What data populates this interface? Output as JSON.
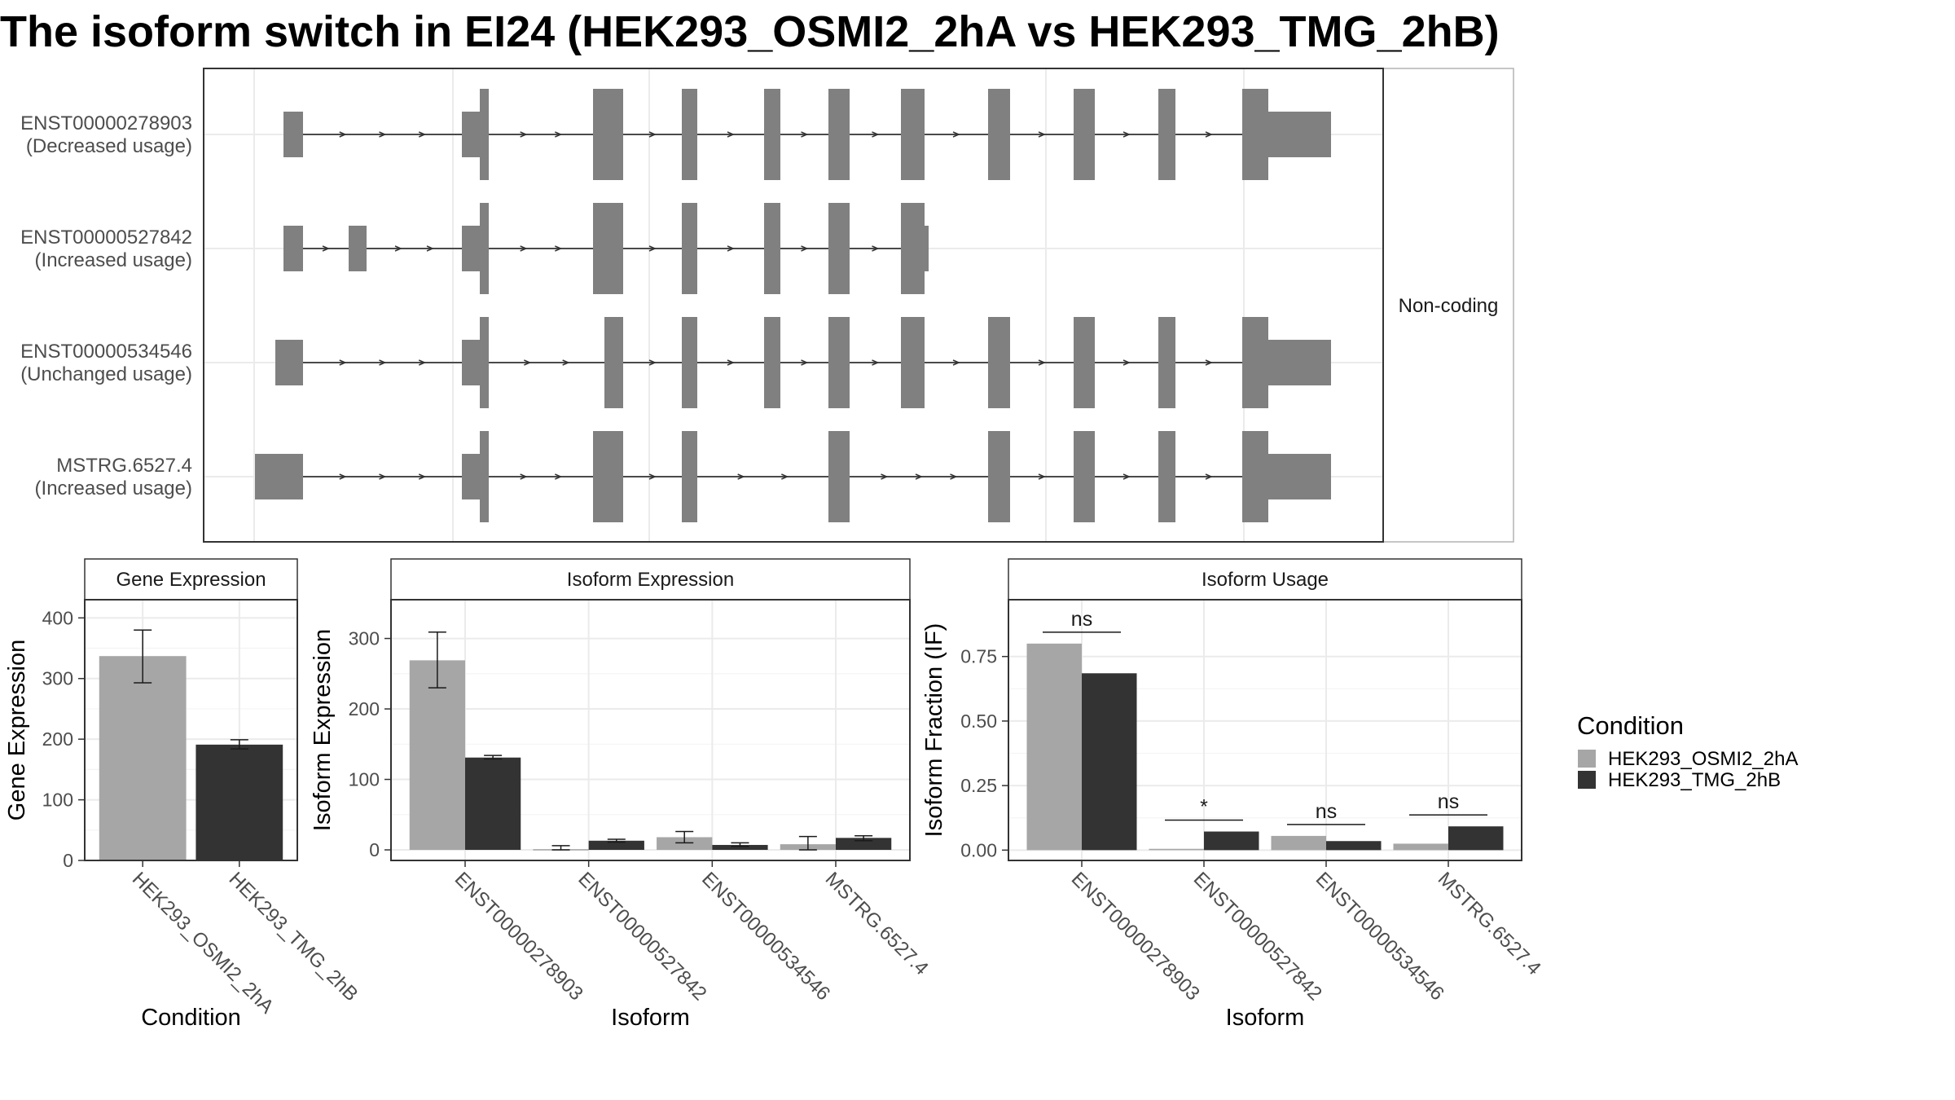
{
  "title": "The isoform switch in EI24 (HEK293_OSMI2_2hA vs HEK293_TMG_2hB)",
  "colors": {
    "cond1": "#a6a6a6",
    "cond2": "#333333",
    "exon": "#808080"
  },
  "structure": {
    "strip_label": "Non-coding",
    "transcripts": [
      {
        "id": "ENST00000278903",
        "usage": "(Decreased usage)"
      },
      {
        "id": "ENST00000527842",
        "usage": "(Increased usage)"
      },
      {
        "id": "ENST00000534546",
        "usage": "(Unchanged usage)"
      },
      {
        "id": "MSTRG.6527.4",
        "usage": "(Increased usage)"
      }
    ]
  },
  "legend": {
    "title": "Condition",
    "items": [
      "HEK293_OSMI2_2hA",
      "HEK293_TMG_2hB"
    ]
  },
  "chart_data": [
    {
      "type": "bar",
      "panel": "Gene Expression",
      "xlabel": "Condition",
      "ylabel": "Gene Expression",
      "categories": [
        "HEK293_OSMI2_2hA",
        "HEK293_TMG_2hB"
      ],
      "values": [
        337,
        191
      ],
      "errors": [
        [
          293,
          380
        ],
        [
          184,
          199
        ]
      ],
      "ylim": [
        0,
        430
      ],
      "yticks": [
        0,
        100,
        200,
        300,
        400
      ]
    },
    {
      "type": "bar",
      "panel": "Isoform Expression",
      "xlabel": "Isoform",
      "ylabel": "Isoform Expression",
      "categories": [
        "ENST00000278903",
        "ENST00000527842",
        "ENST00000534546",
        "MSTRG.6527.4"
      ],
      "series": [
        {
          "name": "HEK293_OSMI2_2hA",
          "values": [
            269,
            1,
            18,
            8
          ],
          "errors": [
            [
              230,
              309
            ],
            [
              0,
              6
            ],
            [
              10,
              26
            ],
            [
              0,
              19
            ]
          ]
        },
        {
          "name": "HEK293_TMG_2hB",
          "values": [
            131,
            13,
            7,
            17
          ],
          "errors": [
            [
              129,
              134
            ],
            [
              11,
              15
            ],
            [
              5,
              10
            ],
            [
              13,
              20
            ]
          ]
        }
      ],
      "ylim": [
        -15,
        355
      ],
      "yticks": [
        0,
        100,
        200,
        300
      ]
    },
    {
      "type": "bar",
      "panel": "Isoform Usage",
      "xlabel": "Isoform",
      "ylabel": "Isoform Fraction (IF)",
      "categories": [
        "ENST00000278903",
        "ENST00000527842",
        "ENST00000534546",
        "MSTRG.6527.4"
      ],
      "series": [
        {
          "name": "HEK293_OSMI2_2hA",
          "values": [
            0.8,
            0.005,
            0.055,
            0.025
          ]
        },
        {
          "name": "HEK293_TMG_2hB",
          "values": [
            0.685,
            0.072,
            0.035,
            0.092
          ]
        }
      ],
      "significance": [
        "ns",
        "*",
        "ns",
        "ns"
      ],
      "ylim": [
        -0.04,
        0.97
      ],
      "yticks": [
        "0.00",
        "0.25",
        "0.50",
        "0.75"
      ]
    }
  ]
}
